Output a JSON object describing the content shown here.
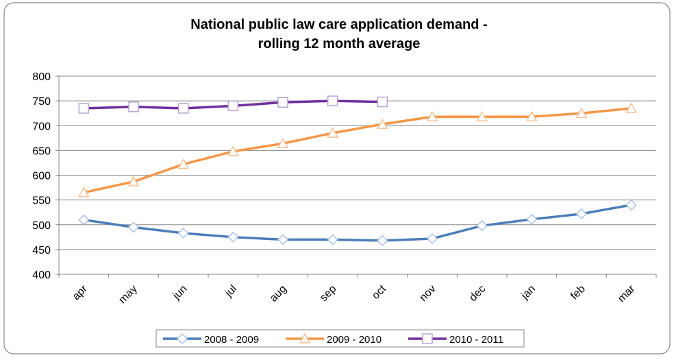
{
  "chart_data": {
    "type": "line",
    "title": [
      "National public law care application demand -",
      "rolling 12 month average"
    ],
    "categories": [
      "apr",
      "may",
      "jun",
      "jul",
      "aug",
      "sep",
      "oct",
      "nov",
      "dec",
      "jan",
      "feb",
      "mar"
    ],
    "series": [
      {
        "name": "2008 - 2009",
        "color": "#4a7ebb",
        "marker": "diamond",
        "marker_color": "#a9c4e6",
        "values": [
          510,
          495,
          483,
          475,
          470,
          470,
          468,
          472,
          498,
          511,
          522,
          540
        ]
      },
      {
        "name": "2009 - 2010",
        "color": "#f79646",
        "marker": "triangle",
        "marker_color": "#fac090",
        "values": [
          565,
          587,
          622,
          648,
          664,
          685,
          703,
          718,
          718,
          718,
          725,
          735
        ]
      },
      {
        "name": "2010 - 2011",
        "color": "#7030a0",
        "marker": "square",
        "marker_color": "#b9a0d6",
        "values": [
          735,
          738,
          735,
          740,
          747,
          750,
          748,
          null,
          null,
          null,
          null,
          null
        ]
      }
    ],
    "ylim": [
      400,
      800
    ],
    "yticks": [
      400,
      450,
      500,
      550,
      600,
      650,
      700,
      750,
      800
    ],
    "grid": true,
    "legend": "bottom"
  }
}
